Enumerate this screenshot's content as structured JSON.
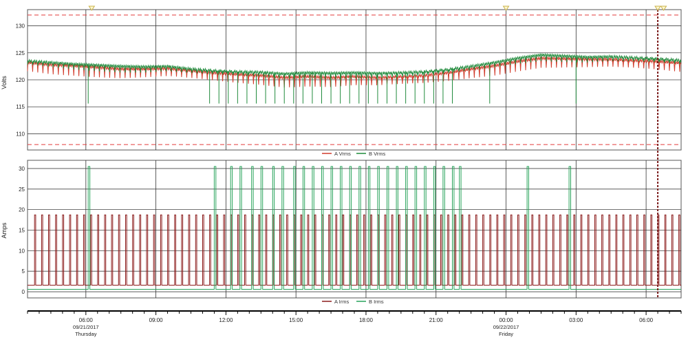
{
  "chart_data": [
    {
      "type": "line",
      "ylabel": "Volts",
      "yticks": [
        110,
        115,
        120,
        125,
        130
      ],
      "ylim": [
        107,
        133
      ],
      "xlim": [
        0,
        28
      ],
      "limits": [
        132,
        108
      ],
      "legend": [
        "A Vrms",
        "B Vrms"
      ],
      "legend_position": "bottom-center",
      "grid": true,
      "series": [
        {
          "name": "A Vrms",
          "color": "#d13a2a",
          "x": [
            0,
            1,
            2,
            3,
            4,
            5,
            6,
            7,
            8,
            9,
            10,
            11,
            12,
            13,
            14,
            15,
            16,
            17,
            18,
            19,
            20,
            21,
            22,
            23,
            24,
            25,
            26,
            27,
            28
          ],
          "y": [
            123.2,
            122.8,
            122.6,
            122.3,
            122.0,
            122.0,
            122.1,
            121.7,
            121.3,
            121.0,
            120.8,
            120.4,
            120.6,
            120.4,
            120.6,
            120.4,
            120.6,
            120.8,
            121.3,
            122.0,
            122.6,
            123.4,
            124.0,
            123.9,
            123.8,
            123.8,
            123.6,
            123.4,
            123.1
          ]
        },
        {
          "name": "B Vrms",
          "color": "#1f8a3b",
          "x": [
            0,
            1,
            2,
            3,
            4,
            5,
            6,
            7,
            8,
            9,
            10,
            11,
            12,
            13,
            14,
            15,
            16,
            17,
            18,
            19,
            20,
            21,
            22,
            23,
            24,
            25,
            26,
            27,
            28
          ],
          "y": [
            123.5,
            123.2,
            122.9,
            122.7,
            122.5,
            122.4,
            122.5,
            122.0,
            121.7,
            121.5,
            121.4,
            121.1,
            121.3,
            121.2,
            121.3,
            121.2,
            121.3,
            121.5,
            121.9,
            122.5,
            123.2,
            124.0,
            124.6,
            124.4,
            124.2,
            124.3,
            124.1,
            123.9,
            123.6
          ]
        }
      ]
    },
    {
      "type": "line",
      "ylabel": "Amps",
      "yticks": [
        0,
        5,
        10,
        15,
        20,
        25,
        30
      ],
      "ylim": [
        -1.5,
        32
      ],
      "xlim": [
        0,
        28
      ],
      "legend": [
        "A Irms",
        "B Irms"
      ],
      "legend_position": "bottom-center",
      "grid": true,
      "series": [
        {
          "name": "A Irms",
          "color": "#8b1a1a",
          "base": 1.6,
          "peak": 18.7,
          "spikes_x": [
            0.3,
            0.6,
            0.9,
            1.2,
            1.5,
            1.8,
            2.1,
            2.4,
            2.7,
            3.0,
            3.3,
            3.6,
            3.9,
            4.2,
            4.5,
            4.8,
            5.1,
            5.4,
            5.7,
            6.0,
            6.3,
            6.6,
            6.9,
            7.2,
            7.5,
            7.8,
            8.1,
            8.4,
            8.7,
            9.0,
            9.3,
            9.6,
            9.9,
            10.2,
            10.5,
            10.8,
            11.1,
            11.4,
            11.7,
            12.0,
            12.3,
            12.6,
            12.9,
            13.2,
            13.5,
            13.8,
            14.1,
            14.4,
            14.7,
            15.0,
            15.3,
            15.6,
            15.9,
            16.2,
            16.5,
            16.8,
            17.1,
            17.4,
            17.7,
            18.0,
            18.3,
            18.6,
            18.9,
            19.2,
            19.5,
            19.8,
            20.1,
            20.4,
            20.7,
            21.0,
            21.3,
            21.6,
            21.9,
            22.2,
            22.5,
            22.8,
            23.1,
            23.4,
            23.7,
            24.0,
            24.3,
            24.6,
            24.9,
            25.2,
            25.5,
            25.8,
            26.1,
            26.4,
            26.7,
            27.0,
            27.3,
            27.6,
            27.9
          ]
        },
        {
          "name": "B Irms",
          "color": "#27a35a",
          "base": 0.6,
          "peak": 30.5,
          "spikes_x": [
            2.6,
            8.0,
            8.7,
            9.1,
            9.6,
            10.0,
            10.5,
            10.9,
            11.4,
            11.8,
            12.2,
            12.6,
            13.0,
            13.4,
            13.8,
            14.2,
            14.6,
            15.0,
            15.4,
            15.8,
            16.2,
            16.6,
            17.0,
            17.4,
            17.8,
            18.2,
            18.5,
            21.4,
            23.2
          ]
        }
      ]
    }
  ],
  "x_axis": {
    "ticks": [
      {
        "x": 2.5,
        "label": "06:00",
        "date": "09/21/2017",
        "day": "Thursday"
      },
      {
        "x": 5.5,
        "label": "09:00"
      },
      {
        "x": 8.5,
        "label": "12:00"
      },
      {
        "x": 11.5,
        "label": "15:00"
      },
      {
        "x": 14.5,
        "label": "18:00"
      },
      {
        "x": 17.5,
        "label": "21:00"
      },
      {
        "x": 20.5,
        "label": "00:00",
        "date": "09/22/2017",
        "day": "Friday"
      },
      {
        "x": 23.5,
        "label": "03:00"
      },
      {
        "x": 26.5,
        "label": "06:00"
      }
    ]
  },
  "markers": {
    "color": "#c9b24a",
    "positions": [
      2.75,
      20.5,
      27.0,
      27.25
    ]
  },
  "cursor": {
    "x": 27.0,
    "color": "#7a1a1a"
  }
}
